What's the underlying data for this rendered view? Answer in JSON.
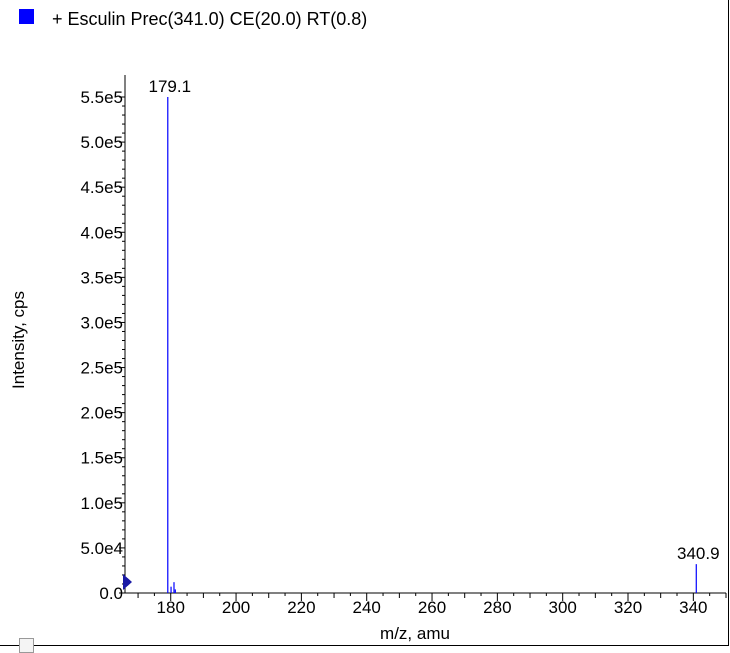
{
  "legend": {
    "label": "+ Esculin Prec(341.0) CE(20.0) RT(0.8)",
    "color": "#0000ff"
  },
  "chart_data": {
    "type": "bar",
    "title": "",
    "xlabel": "m/z, amu",
    "ylabel": "Intensity, cps",
    "xlim": [
      166,
      350
    ],
    "ylim": [
      0,
      560000
    ],
    "x_ticks_major": [
      180,
      200,
      220,
      240,
      260,
      280,
      300,
      320,
      340
    ],
    "y_ticks": [
      {
        "value": 0,
        "label": "0.0"
      },
      {
        "value": 50000,
        "label": "5.0e4"
      },
      {
        "value": 100000,
        "label": "1.0e5"
      },
      {
        "value": 150000,
        "label": "1.5e5"
      },
      {
        "value": 200000,
        "label": "2.0e5"
      },
      {
        "value": 250000,
        "label": "2.5e5"
      },
      {
        "value": 300000,
        "label": "3.0e5"
      },
      {
        "value": 350000,
        "label": "3.5e5"
      },
      {
        "value": 400000,
        "label": "4.0e5"
      },
      {
        "value": 450000,
        "label": "4.5e5"
      },
      {
        "value": 500000,
        "label": "5.0e5"
      },
      {
        "value": 550000,
        "label": "5.5e5"
      }
    ],
    "series": [
      {
        "color": "#0000ff",
        "peaks": [
          {
            "mz": 179.1,
            "intensity": 550000,
            "label": "179.1"
          },
          {
            "mz": 180.1,
            "intensity": 7000
          },
          {
            "mz": 181.0,
            "intensity": 12000
          },
          {
            "mz": 181.4,
            "intensity": 4000
          },
          {
            "mz": 340.9,
            "intensity": 32000,
            "label": "340.9"
          }
        ]
      }
    ],
    "grid": false
  }
}
